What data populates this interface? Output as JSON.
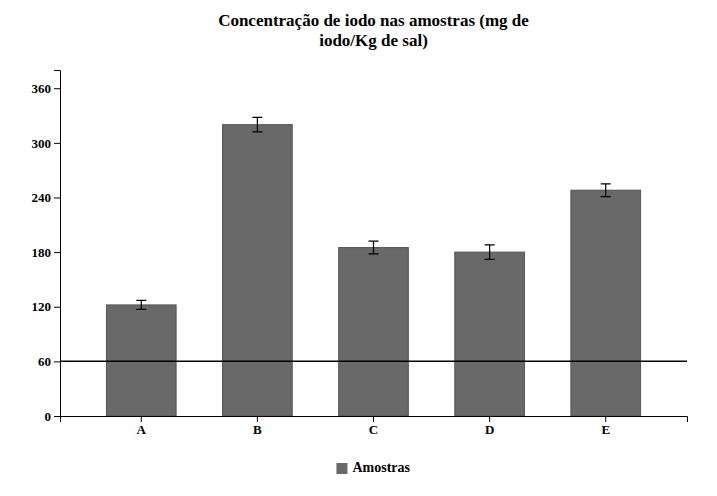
{
  "chart_data": {
    "type": "bar",
    "title": "Concentração de iodo nas amostras (mg de\niodo/Kg de sal)",
    "categories": [
      "A",
      "B",
      "C",
      "D",
      "E"
    ],
    "series": [
      {
        "name": "Amostras",
        "color": "#696969",
        "values": [
          122,
          320,
          185,
          180,
          248
        ],
        "errors": [
          5,
          8,
          7,
          8,
          7
        ]
      }
    ],
    "hlines": [
      {
        "y": 60,
        "color": "black"
      }
    ],
    "ylim": [
      0,
      380
    ],
    "yticks": [
      0,
      60,
      120,
      180,
      240,
      300,
      360
    ],
    "grid": false,
    "legend": "bottom"
  }
}
